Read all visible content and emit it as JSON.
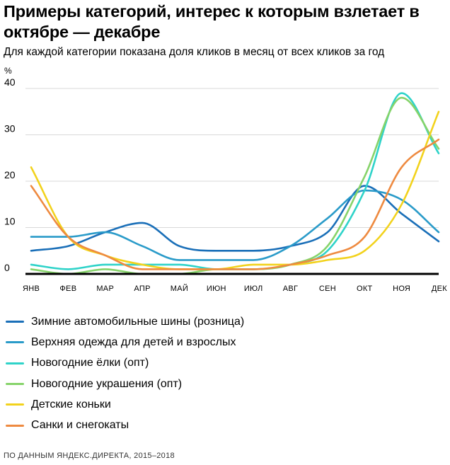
{
  "header": {
    "title": "Примеры категорий, интерес к которым взлетает в октябре — декабре",
    "subtitle": "Для каждой категории показана доля кликов в месяц от всех кликов за год"
  },
  "footer": {
    "source": "ПО ДАННЫМ ЯНДЕКС.ДИРЕКТА, 2015–2018"
  },
  "chart_data": {
    "type": "line",
    "title": "Примеры категорий, интерес к которым взлетает в октябре — декабре",
    "subtitle": "Для каждой категории показана доля кликов в месяц от всех кликов за год",
    "ylabel": "%",
    "xlabel": "",
    "ylim": [
      0,
      40
    ],
    "yticks": [
      0,
      10,
      20,
      30,
      40
    ],
    "grid": true,
    "legend_position": "bottom",
    "categories": [
      "ЯНВ",
      "ФЕВ",
      "МАР",
      "АПР",
      "МАЙ",
      "ИЮН",
      "ИЮЛ",
      "АВГ",
      "СЕН",
      "ОКТ",
      "НОЯ",
      "ДЕК"
    ],
    "series": [
      {
        "name": "Зимние автомобильные шины (розница)",
        "color": "#1a6fb8",
        "values": [
          5,
          6,
          9,
          11,
          6,
          5,
          5,
          6,
          9,
          19,
          13,
          7
        ]
      },
      {
        "name": "Верхняя одежда для детей и взрослых",
        "color": "#2a9bc9",
        "values": [
          8,
          8,
          9,
          6,
          3,
          3,
          3,
          6,
          12,
          18,
          16,
          9
        ]
      },
      {
        "name": "Новогодние ёлки (опт)",
        "color": "#2fd3c9",
        "values": [
          2,
          1,
          2,
          2,
          2,
          1,
          1,
          2,
          5,
          18,
          39,
          26
        ]
      },
      {
        "name": "Новогодние украшения (опт)",
        "color": "#86d36a",
        "values": [
          1,
          0,
          1,
          0,
          0,
          1,
          1,
          2,
          6,
          21,
          38,
          27
        ]
      },
      {
        "name": "Детские коньки",
        "color": "#f2d21c",
        "values": [
          23,
          8,
          4,
          2,
          1,
          1,
          2,
          2,
          3,
          5,
          15,
          35
        ]
      },
      {
        "name": "Санки и снегокаты",
        "color": "#ee8a40",
        "values": [
          19,
          8,
          4,
          1,
          1,
          1,
          1,
          2,
          4,
          8,
          23,
          29
        ]
      }
    ]
  }
}
